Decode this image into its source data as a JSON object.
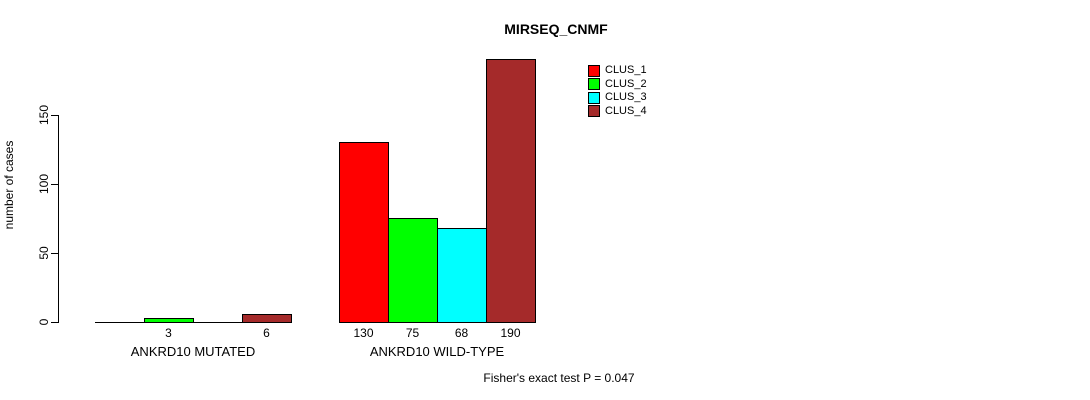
{
  "chart_data": {
    "type": "bar",
    "title": "MIRSEQ_CNMF",
    "ylabel": "number of cases",
    "xlabel": "",
    "yticks": [
      0,
      50,
      100,
      150
    ],
    "ylim": [
      0,
      190
    ],
    "grid": false,
    "legend_position": "top-right",
    "categories": [
      "ANKRD10 MUTATED",
      "ANKRD10 WILD-TYPE"
    ],
    "groups": [
      {
        "label": "ANKRD10 MUTATED",
        "values": [
          0,
          3,
          0,
          6
        ],
        "bar_labels": [
          "",
          "3",
          "",
          "6"
        ]
      },
      {
        "label": "ANKRD10 WILD-TYPE",
        "values": [
          130,
          75,
          68,
          190
        ],
        "bar_labels": [
          "130",
          "75",
          "68",
          "190"
        ]
      }
    ],
    "series": [
      {
        "name": "CLUS_1",
        "color": "#FF0000"
      },
      {
        "name": "CLUS_2",
        "color": "#00FF00"
      },
      {
        "name": "CLUS_3",
        "color": "#00FFFF"
      },
      {
        "name": "CLUS_4",
        "color": "#A52A2A"
      }
    ],
    "annotation": "Fisher's exact test P = 0.047"
  }
}
